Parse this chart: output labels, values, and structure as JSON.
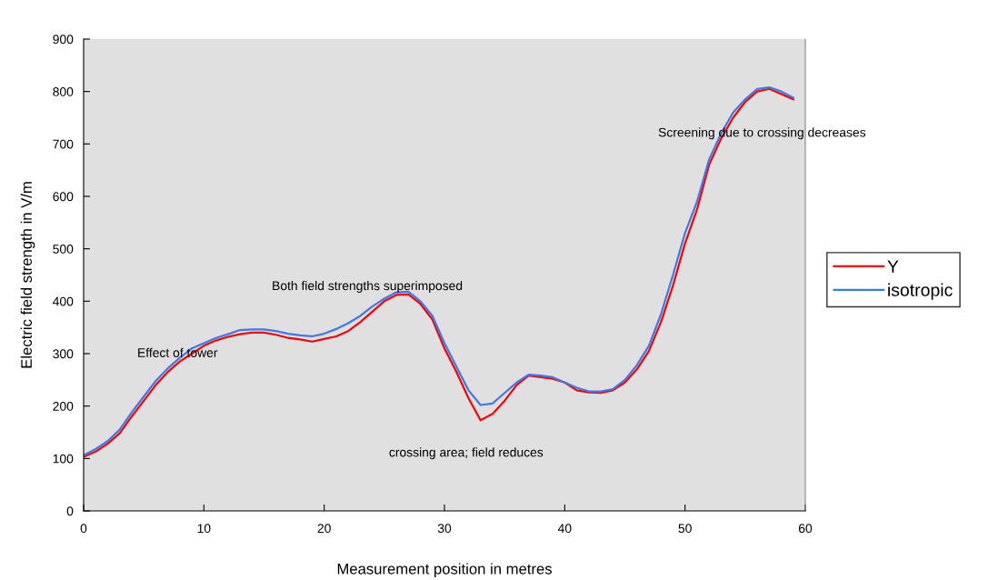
{
  "chart_data": {
    "type": "line",
    "xlabel": "Measurement position in metres",
    "ylabel": "Electric field strength in V/m",
    "x": [
      0,
      1,
      2,
      3,
      4,
      5,
      6,
      7,
      8,
      9,
      10,
      11,
      12,
      13,
      14,
      15,
      16,
      17,
      18,
      19,
      20,
      21,
      22,
      23,
      24,
      25,
      26,
      27,
      28,
      29,
      30,
      31,
      32,
      33,
      34,
      35,
      36,
      37,
      38,
      39,
      40,
      41,
      42,
      43,
      44,
      45,
      46,
      47,
      48,
      49,
      50,
      51,
      52,
      53,
      54,
      55,
      56,
      57,
      58,
      59
    ],
    "series": [
      {
        "name": "Y",
        "color": "#ff0000",
        "values": [
          103,
          113,
          128,
          148,
          180,
          210,
          240,
          265,
          285,
          300,
          315,
          325,
          332,
          337,
          340,
          340,
          336,
          330,
          327,
          323,
          328,
          333,
          343,
          360,
          380,
          400,
          412,
          413,
          395,
          365,
          310,
          265,
          215,
          173,
          185,
          210,
          240,
          258,
          255,
          252,
          245,
          230,
          226,
          225,
          230,
          245,
          270,
          305,
          360,
          430,
          510,
          575,
          660,
          710,
          750,
          780,
          800,
          805,
          795,
          785
        ]
      },
      {
        "name": "isotropic",
        "color": "#3c78f0",
        "values": [
          106,
          118,
          133,
          155,
          188,
          218,
          248,
          272,
          292,
          310,
          320,
          330,
          337,
          345,
          346,
          346,
          343,
          338,
          335,
          333,
          338,
          347,
          358,
          372,
          390,
          405,
          417,
          418,
          400,
          372,
          320,
          275,
          230,
          202,
          205,
          225,
          245,
          260,
          258,
          255,
          245,
          235,
          228,
          228,
          232,
          250,
          278,
          315,
          375,
          450,
          530,
          590,
          670,
          720,
          760,
          785,
          805,
          808,
          800,
          788
        ]
      }
    ],
    "xlim": [
      0,
      60
    ],
    "xticks": [
      0,
      10,
      20,
      30,
      40,
      50,
      60
    ],
    "ylim": [
      0,
      900
    ],
    "yticks": [
      0,
      100,
      200,
      300,
      400,
      500,
      600,
      700,
      800,
      900
    ],
    "annotations": [
      "Effect of tower",
      "Both field strengths superimposed",
      "crossing area; field reduces",
      "Screening due to crossing decreases"
    ],
    "legend": "right",
    "grid": false,
    "marker": "none",
    "line_style": "solid"
  }
}
